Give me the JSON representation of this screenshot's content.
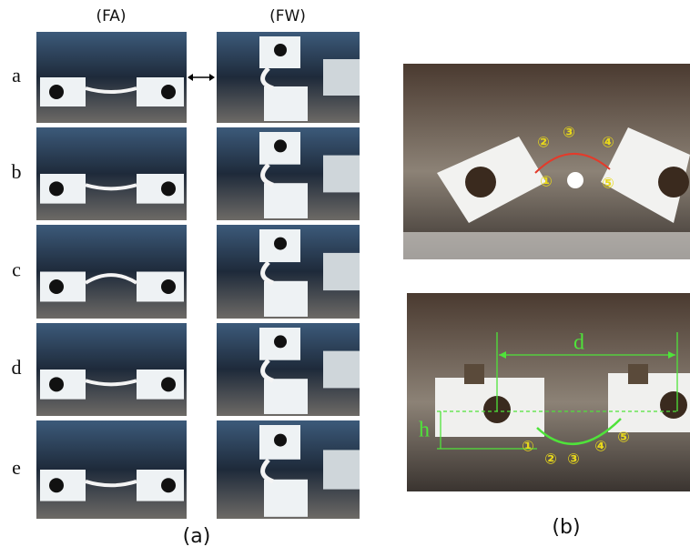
{
  "figure": {
    "columns": [
      "(FA)",
      "(FW)"
    ],
    "rows": [
      "a",
      "b",
      "c",
      "d",
      "e"
    ],
    "panel_a_label": "(a)",
    "panel_b_label": "(b)",
    "top_photo_markers": [
      "①",
      "②",
      "③",
      "④",
      "⑤"
    ],
    "bottom_photo": {
      "width_label": "d",
      "height_label": "h",
      "markers": [
        "①",
        "②",
        "③",
        "④",
        "⑤"
      ]
    }
  }
}
